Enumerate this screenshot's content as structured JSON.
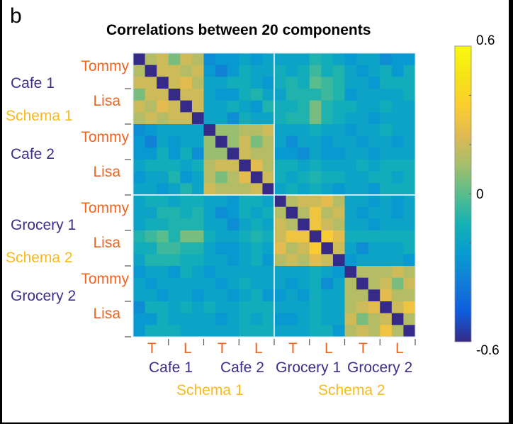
{
  "panel_label": "b",
  "chart_data": {
    "type": "heatmap",
    "title": "Correlations between 20 components",
    "colormap": "parula",
    "clim": [
      -0.6,
      0.6
    ],
    "colorbar": {
      "ticks": [
        "-0.6",
        "0",
        "0.6"
      ],
      "minor_ticks": [
        -0.4,
        -0.2,
        0.2,
        0.4
      ]
    },
    "block_size": 6,
    "row_labels": {
      "person": [
        "Tommy",
        "Lisa",
        "Tommy",
        "Lisa",
        "Tommy",
        "Lisa",
        "Tommy",
        "Lisa"
      ],
      "context": [
        "Cafe 1",
        "Cafe 2",
        "Grocery 1",
        "Grocery 2"
      ],
      "schema": [
        "Schema 1",
        "Schema 2"
      ]
    },
    "col_labels": {
      "person": [
        "T",
        "L",
        "T",
        "L",
        "T",
        "L",
        "T",
        "L"
      ],
      "context": [
        "Cafe 1",
        "Cafe 2",
        "Grocery 1",
        "Grocery 2"
      ],
      "schema": [
        "Schema 1",
        "Schema 2"
      ]
    },
    "values": [
      [
        -0.6,
        0.15,
        0.2,
        0.05,
        0.2,
        0.15,
        -0.3,
        -0.25,
        -0.25,
        -0.2,
        -0.25,
        -0.2,
        -0.2,
        -0.2,
        -0.2,
        -0.1,
        -0.15,
        -0.2,
        -0.25,
        -0.2,
        -0.2,
        -0.3,
        -0.25,
        -0.25
      ],
      [
        0.15,
        -0.6,
        0.2,
        0.2,
        0.15,
        0.2,
        -0.25,
        -0.35,
        -0.25,
        -0.15,
        -0.2,
        -0.2,
        -0.15,
        -0.2,
        -0.15,
        -0.05,
        -0.15,
        -0.1,
        -0.2,
        -0.25,
        -0.2,
        -0.15,
        -0.25,
        -0.15
      ],
      [
        0.2,
        0.2,
        -0.6,
        0.2,
        0.25,
        0.15,
        -0.2,
        -0.2,
        -0.15,
        -0.15,
        -0.2,
        -0.25,
        -0.15,
        -0.1,
        -0.15,
        0.0,
        -0.05,
        -0.1,
        -0.2,
        -0.2,
        -0.25,
        -0.15,
        -0.15,
        -0.15
      ],
      [
        0.05,
        0.2,
        0.2,
        -0.6,
        0.2,
        0.2,
        -0.2,
        -0.25,
        -0.25,
        -0.15,
        -0.1,
        -0.2,
        -0.2,
        -0.1,
        -0.1,
        -0.1,
        -0.05,
        -0.1,
        -0.25,
        -0.2,
        -0.2,
        -0.2,
        -0.2,
        -0.15
      ],
      [
        0.2,
        0.15,
        0.25,
        0.2,
        -0.6,
        0.2,
        -0.2,
        -0.2,
        -0.15,
        -0.2,
        -0.25,
        -0.1,
        -0.15,
        -0.15,
        -0.1,
        0.05,
        -0.1,
        -0.15,
        -0.15,
        -0.2,
        -0.2,
        -0.15,
        -0.2,
        -0.2
      ],
      [
        0.15,
        0.2,
        0.15,
        0.2,
        0.2,
        -0.6,
        -0.2,
        -0.2,
        -0.3,
        -0.15,
        -0.2,
        -0.2,
        -0.15,
        -0.1,
        -0.1,
        0.05,
        -0.1,
        -0.15,
        -0.2,
        -0.2,
        -0.25,
        -0.2,
        -0.2,
        -0.2
      ],
      [
        -0.3,
        -0.25,
        -0.2,
        -0.2,
        -0.2,
        -0.2,
        -0.6,
        0.1,
        0.1,
        0.15,
        0.15,
        0.2,
        -0.2,
        -0.2,
        -0.2,
        -0.15,
        -0.2,
        -0.2,
        -0.25,
        -0.2,
        -0.2,
        -0.15,
        -0.2,
        -0.2
      ],
      [
        -0.25,
        -0.35,
        -0.2,
        -0.25,
        -0.2,
        -0.2,
        0.1,
        -0.6,
        0.1,
        0.2,
        0.05,
        0.15,
        -0.2,
        -0.3,
        -0.2,
        -0.2,
        -0.25,
        -0.2,
        -0.2,
        -0.25,
        -0.2,
        -0.2,
        -0.25,
        -0.2
      ],
      [
        -0.25,
        -0.25,
        -0.15,
        -0.25,
        -0.15,
        -0.3,
        0.1,
        0.1,
        -0.6,
        0.2,
        0.15,
        0.15,
        -0.25,
        -0.25,
        -0.3,
        -0.2,
        -0.25,
        -0.25,
        -0.2,
        -0.2,
        -0.25,
        -0.2,
        -0.2,
        -0.2
      ],
      [
        -0.2,
        -0.15,
        -0.15,
        -0.15,
        -0.2,
        -0.15,
        0.15,
        0.2,
        0.2,
        -0.6,
        0.25,
        0.15,
        -0.15,
        -0.15,
        -0.2,
        -0.15,
        -0.2,
        -0.2,
        -0.2,
        -0.15,
        -0.2,
        -0.15,
        -0.15,
        -0.15
      ],
      [
        -0.25,
        -0.2,
        -0.2,
        -0.1,
        -0.25,
        -0.2,
        0.15,
        0.05,
        0.15,
        0.25,
        -0.6,
        0.2,
        -0.15,
        -0.2,
        -0.15,
        -0.1,
        -0.15,
        -0.15,
        -0.2,
        -0.2,
        -0.15,
        -0.15,
        -0.2,
        -0.15
      ],
      [
        -0.2,
        -0.2,
        -0.25,
        -0.2,
        -0.1,
        -0.2,
        0.2,
        0.15,
        0.15,
        0.15,
        0.2,
        -0.6,
        -0.2,
        -0.15,
        -0.2,
        -0.15,
        -0.2,
        -0.25,
        -0.2,
        -0.2,
        -0.25,
        -0.15,
        -0.15,
        -0.15
      ],
      [
        -0.2,
        -0.15,
        -0.15,
        -0.2,
        -0.15,
        -0.15,
        -0.2,
        -0.2,
        -0.25,
        -0.15,
        -0.15,
        -0.2,
        -0.6,
        0.15,
        0.2,
        0.2,
        0.25,
        0.15,
        -0.2,
        -0.2,
        -0.25,
        -0.2,
        -0.25,
        -0.2
      ],
      [
        -0.2,
        -0.2,
        -0.1,
        -0.1,
        -0.15,
        -0.1,
        -0.2,
        -0.3,
        -0.25,
        -0.15,
        -0.2,
        -0.15,
        0.15,
        -0.6,
        0.15,
        0.3,
        0.15,
        0.2,
        -0.2,
        -0.25,
        -0.2,
        -0.2,
        -0.25,
        -0.2
      ],
      [
        -0.2,
        -0.15,
        -0.15,
        -0.1,
        -0.1,
        -0.1,
        -0.2,
        -0.2,
        -0.3,
        -0.2,
        -0.15,
        -0.2,
        0.2,
        0.15,
        -0.6,
        0.3,
        0.2,
        0.15,
        -0.2,
        -0.2,
        -0.25,
        -0.2,
        -0.2,
        -0.2
      ],
      [
        -0.1,
        -0.05,
        0.0,
        -0.1,
        0.05,
        0.05,
        -0.15,
        -0.2,
        -0.2,
        -0.15,
        -0.1,
        -0.15,
        0.2,
        0.3,
        0.3,
        -0.6,
        0.35,
        0.25,
        -0.15,
        -0.15,
        -0.15,
        -0.15,
        -0.15,
        -0.15
      ],
      [
        -0.15,
        -0.15,
        -0.05,
        -0.05,
        -0.1,
        -0.1,
        -0.2,
        -0.25,
        -0.25,
        -0.2,
        -0.15,
        -0.2,
        0.25,
        0.15,
        0.2,
        0.35,
        -0.6,
        0.2,
        -0.2,
        -0.3,
        -0.2,
        -0.2,
        -0.2,
        -0.15
      ],
      [
        -0.2,
        -0.1,
        -0.1,
        -0.1,
        -0.15,
        -0.15,
        -0.2,
        -0.2,
        -0.25,
        -0.2,
        -0.15,
        -0.25,
        0.15,
        0.2,
        0.15,
        0.25,
        0.2,
        -0.6,
        -0.25,
        -0.2,
        -0.2,
        -0.2,
        -0.2,
        -0.25
      ],
      [
        -0.25,
        -0.2,
        -0.2,
        -0.25,
        -0.15,
        -0.2,
        -0.25,
        -0.2,
        -0.2,
        -0.2,
        -0.2,
        -0.2,
        -0.2,
        -0.2,
        -0.2,
        -0.15,
        -0.2,
        -0.25,
        -0.6,
        0.15,
        0.15,
        0.15,
        0.2,
        0.15
      ],
      [
        -0.2,
        -0.25,
        -0.2,
        -0.2,
        -0.2,
        -0.2,
        -0.2,
        -0.25,
        -0.2,
        -0.15,
        -0.2,
        -0.2,
        -0.2,
        -0.25,
        -0.2,
        -0.15,
        -0.3,
        -0.2,
        0.15,
        -0.6,
        0.15,
        0.2,
        0.05,
        0.2
      ],
      [
        -0.2,
        -0.2,
        -0.25,
        -0.2,
        -0.2,
        -0.25,
        -0.2,
        -0.2,
        -0.25,
        -0.2,
        -0.15,
        -0.25,
        -0.25,
        -0.2,
        -0.25,
        -0.15,
        -0.2,
        -0.2,
        0.15,
        0.15,
        -0.6,
        0.25,
        0.15,
        0.15
      ],
      [
        -0.3,
        -0.15,
        -0.15,
        -0.2,
        -0.15,
        -0.2,
        -0.15,
        -0.2,
        -0.2,
        -0.15,
        -0.15,
        -0.15,
        -0.2,
        -0.2,
        -0.2,
        -0.15,
        -0.2,
        -0.2,
        0.15,
        0.2,
        0.25,
        -0.6,
        0.2,
        0.3
      ],
      [
        -0.25,
        -0.25,
        -0.15,
        -0.2,
        -0.2,
        -0.2,
        -0.2,
        -0.25,
        -0.2,
        -0.15,
        -0.2,
        -0.15,
        -0.25,
        -0.25,
        -0.2,
        -0.15,
        -0.2,
        -0.2,
        0.2,
        0.05,
        0.15,
        0.2,
        -0.6,
        0.15
      ],
      [
        -0.25,
        -0.15,
        -0.15,
        -0.15,
        -0.2,
        -0.2,
        -0.2,
        -0.2,
        -0.2,
        -0.15,
        -0.15,
        -0.15,
        -0.2,
        -0.2,
        -0.2,
        -0.15,
        -0.15,
        -0.25,
        0.15,
        0.2,
        0.15,
        0.3,
        0.15,
        -0.6
      ]
    ]
  },
  "colors": {
    "person_label": "#f0641e",
    "context_label": "#3a2f8c",
    "schema_label": "#f8ba1e",
    "block_divider": "#ffffff"
  }
}
